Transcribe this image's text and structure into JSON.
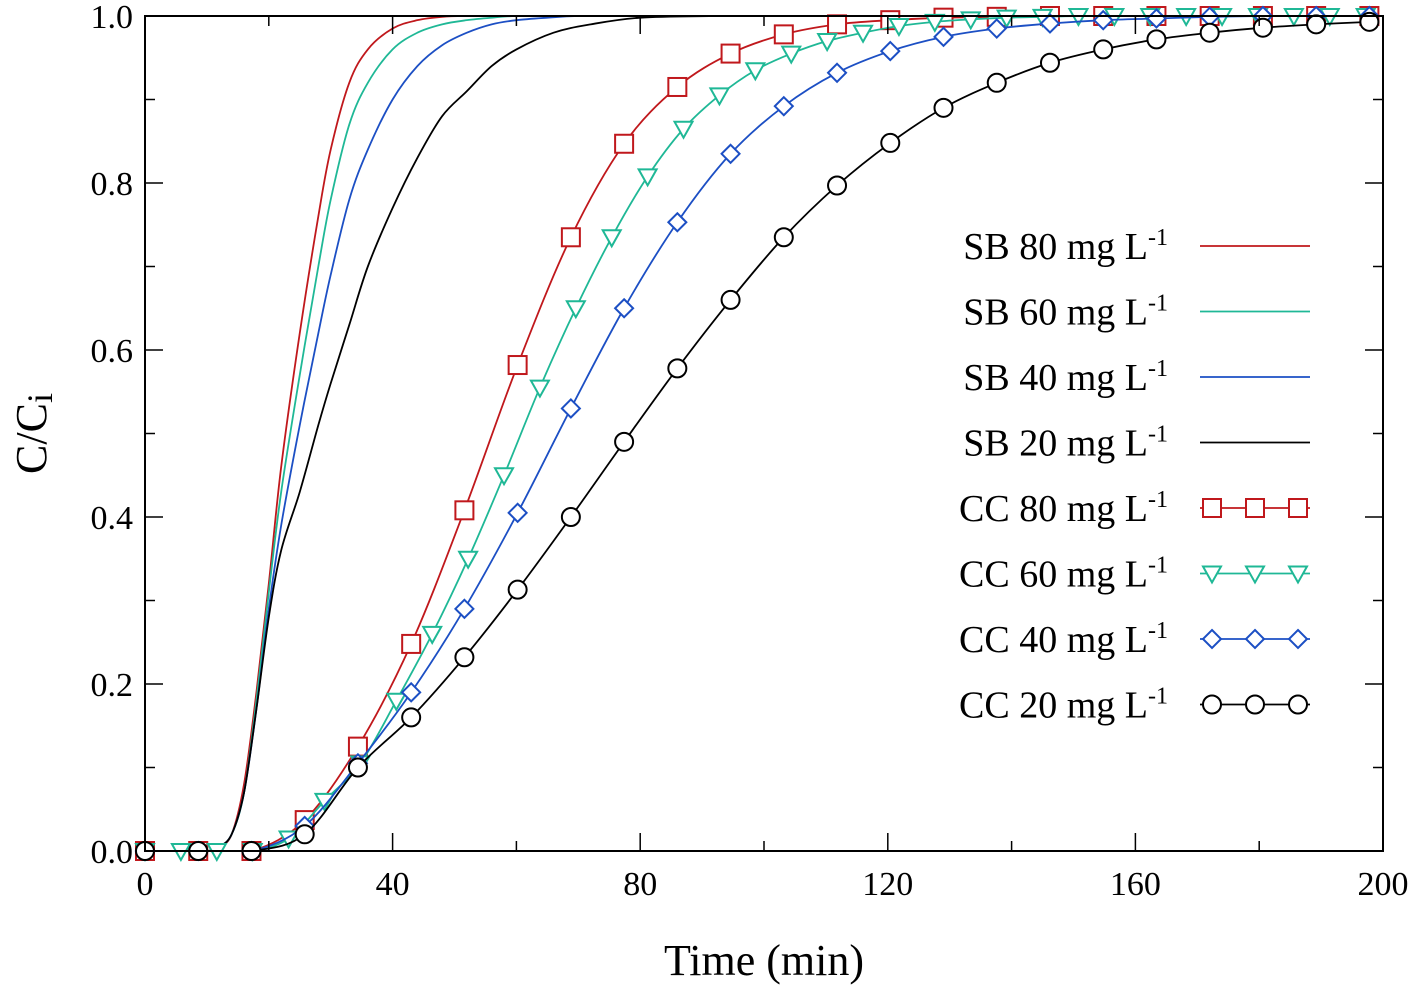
{
  "chart_data": {
    "type": "line",
    "title": "",
    "xlabel": "Time (min)",
    "ylabel": "C/C",
    "ylabel_subscript": "i",
    "xlim": [
      0,
      200
    ],
    "ylim": [
      0,
      1.0
    ],
    "x_ticks": [
      0,
      40,
      80,
      120,
      160,
      200
    ],
    "x_tick_labels": [
      "0",
      "40",
      "80",
      "120",
      "160",
      "200"
    ],
    "x_minor_step": 20,
    "y_ticks": [
      0,
      0.2,
      0.4,
      0.6,
      0.8,
      1.0
    ],
    "y_tick_labels": [
      "0.0",
      "0.2",
      "0.4",
      "0.6",
      "0.8",
      "1.0"
    ],
    "y_minor_step": 0.1,
    "grid": false,
    "legend_position": "right",
    "series": [
      {
        "name": "SB 80 mg L",
        "name_sup": "-1",
        "color": "#c0181c",
        "marker": "none",
        "x": [
          0,
          10,
          12,
          14,
          16,
          18,
          20,
          22,
          25,
          28,
          30,
          33,
          36,
          40,
          44,
          48,
          52,
          60,
          70,
          80,
          92
        ],
        "y": [
          0,
          0,
          0.005,
          0.02,
          0.08,
          0.19,
          0.32,
          0.46,
          0.62,
          0.76,
          0.84,
          0.92,
          0.96,
          0.985,
          0.995,
          0.999,
          1.0,
          1.0,
          1.0,
          1.0,
          1.0
        ]
      },
      {
        "name": "SB 60 mg L",
        "name_sup": "-1",
        "color": "#1fb896",
        "marker": "none",
        "x": [
          0,
          10,
          12,
          14,
          16,
          18,
          20,
          22,
          25,
          28,
          30,
          33,
          36,
          40,
          44,
          48,
          52,
          56,
          60,
          70,
          80,
          92
        ],
        "y": [
          0,
          0,
          0.005,
          0.02,
          0.07,
          0.18,
          0.31,
          0.43,
          0.57,
          0.7,
          0.78,
          0.87,
          0.92,
          0.96,
          0.98,
          0.99,
          0.995,
          0.998,
          1.0,
          1.0,
          1.0,
          1.0
        ]
      },
      {
        "name": "SB 40 mg L",
        "name_sup": "-1",
        "color": "#1c4fc4",
        "marker": "none",
        "x": [
          0,
          10,
          12,
          14,
          16,
          18,
          20,
          22,
          25,
          28,
          30,
          33,
          36,
          40,
          44,
          48,
          52,
          56,
          60,
          65,
          70,
          80,
          92
        ],
        "y": [
          0,
          0,
          0.005,
          0.02,
          0.07,
          0.17,
          0.29,
          0.39,
          0.51,
          0.62,
          0.69,
          0.78,
          0.84,
          0.9,
          0.94,
          0.965,
          0.98,
          0.99,
          0.995,
          0.998,
          1.0,
          1.0,
          1.0
        ]
      },
      {
        "name": "SB 20 mg L",
        "name_sup": "-1",
        "color": "#000000",
        "marker": "none",
        "x": [
          0,
          10,
          12,
          14,
          16,
          18,
          20,
          22,
          25,
          28,
          30,
          33,
          36,
          40,
          44,
          48,
          52,
          56,
          60,
          66,
          72,
          80,
          92
        ],
        "y": [
          0,
          0,
          0.005,
          0.02,
          0.07,
          0.17,
          0.28,
          0.36,
          0.43,
          0.51,
          0.56,
          0.63,
          0.7,
          0.77,
          0.83,
          0.88,
          0.91,
          0.94,
          0.96,
          0.98,
          0.99,
          0.998,
          1.0
        ]
      },
      {
        "name": "CC 80 mg L",
        "name_sup": "-1",
        "color": "#c0181c",
        "marker": "square",
        "x": [
          0,
          8.6,
          17.2,
          25.8,
          34.4,
          43,
          51.6,
          60.2,
          68.8,
          77.4,
          86,
          94.6,
          103.2,
          111.8,
          120.4,
          129,
          137.6,
          146.2,
          154.8,
          163.4,
          172,
          180.6,
          189.2,
          197.8
        ],
        "y": [
          0,
          0,
          0,
          0.037,
          0.125,
          0.248,
          0.408,
          0.582,
          0.735,
          0.847,
          0.915,
          0.955,
          0.978,
          0.99,
          0.995,
          0.998,
          0.999,
          1.0,
          1.0,
          1.0,
          1.0,
          1.0,
          1.0,
          1.0
        ]
      },
      {
        "name": "CC 60 mg L",
        "name_sup": "-1",
        "color": "#1fb896",
        "marker": "triangle-down",
        "x": [
          0,
          5.8,
          11.6,
          17.4,
          23.2,
          29,
          34.8,
          40.6,
          46.4,
          52.2,
          58,
          63.8,
          69.6,
          75.4,
          81.2,
          87,
          92.8,
          98.6,
          104.4,
          110.2,
          116,
          121.8,
          127.6,
          133.4,
          139.2,
          145,
          150.8,
          156.6,
          162.4,
          168.2,
          174,
          179.8,
          185.6,
          191.4,
          197.2
        ],
        "y": [
          0,
          0,
          0,
          0,
          0.015,
          0.06,
          0.105,
          0.18,
          0.26,
          0.35,
          0.45,
          0.555,
          0.65,
          0.735,
          0.808,
          0.865,
          0.905,
          0.935,
          0.955,
          0.97,
          0.98,
          0.988,
          0.993,
          0.996,
          0.998,
          0.999,
          1.0,
          1.0,
          1.0,
          1.0,
          1.0,
          1.0,
          1.0,
          1.0,
          1.0
        ]
      },
      {
        "name": "CC 40 mg L",
        "name_sup": "-1",
        "color": "#1c4fc4",
        "marker": "diamond",
        "x": [
          0,
          8.6,
          17.2,
          25.8,
          34.4,
          43,
          51.6,
          60.2,
          68.8,
          77.4,
          86,
          94.6,
          103.2,
          111.8,
          120.4,
          129,
          137.6,
          146.2,
          154.8,
          163.4,
          172,
          180.6,
          189.2,
          197.8
        ],
        "y": [
          0,
          0,
          0,
          0.03,
          0.105,
          0.19,
          0.29,
          0.405,
          0.53,
          0.65,
          0.753,
          0.835,
          0.892,
          0.932,
          0.958,
          0.975,
          0.985,
          0.991,
          0.995,
          0.997,
          0.999,
          1.0,
          1.0,
          1.0
        ]
      },
      {
        "name": "CC 20 mg L",
        "name_sup": "-1",
        "color": "#000000",
        "marker": "circle",
        "x": [
          0,
          8.6,
          17.2,
          25.8,
          34.4,
          43,
          51.6,
          60.2,
          68.8,
          77.4,
          86,
          94.6,
          103.2,
          111.8,
          120.4,
          129,
          137.6,
          146.2,
          154.8,
          163.4,
          172,
          180.6,
          189.2,
          197.8
        ],
        "y": [
          0,
          0,
          0,
          0.02,
          0.1,
          0.16,
          0.232,
          0.313,
          0.4,
          0.49,
          0.578,
          0.66,
          0.735,
          0.797,
          0.848,
          0.89,
          0.92,
          0.944,
          0.96,
          0.972,
          0.98,
          0.986,
          0.99,
          0.993
        ]
      }
    ]
  }
}
